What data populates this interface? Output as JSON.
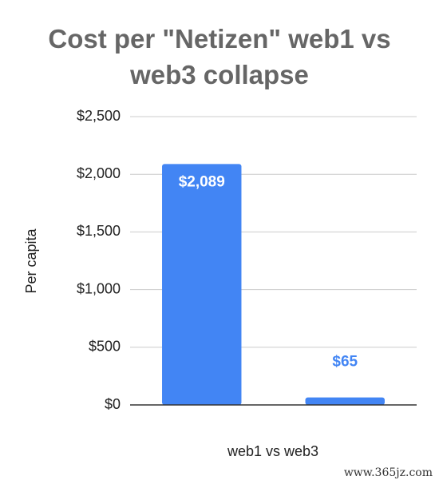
{
  "chart_data": {
    "type": "bar",
    "title": "Cost per \"Netizen\" web1 vs web3 collapse",
    "y_label": "Per capita",
    "x_label": "web1 vs web3",
    "categories": [
      null,
      null
    ],
    "values": [
      2089,
      65
    ],
    "value_labels": [
      "$2,089",
      "$65"
    ],
    "color": "#4285f4",
    "ylim": [
      0,
      2500
    ],
    "yticks": [
      {
        "value": 0,
        "label": "$0"
      },
      {
        "value": 500,
        "label": "$500"
      },
      {
        "value": 1000,
        "label": "$1,000"
      },
      {
        "value": 1500,
        "label": "$1,500"
      },
      {
        "value": 2000,
        "label": "$2,000"
      },
      {
        "value": 2500,
        "label": "$2,500"
      }
    ],
    "grid": true
  },
  "watermark": "www.365jz.com"
}
